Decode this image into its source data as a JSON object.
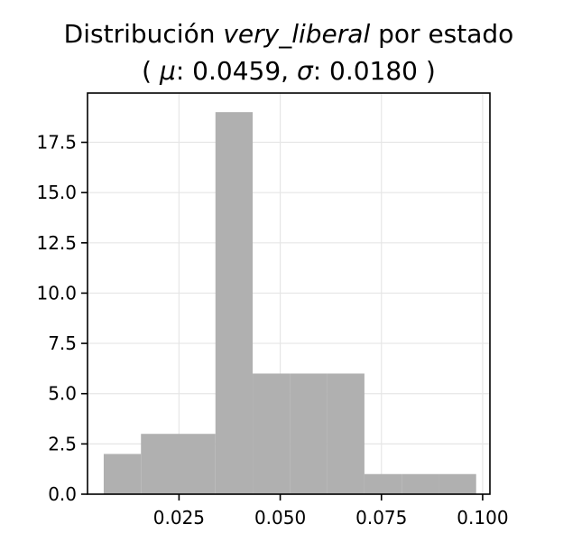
{
  "chart_data": {
    "type": "bar",
    "title": {
      "line1_prefix": "Distribución ",
      "line1_italic": "very_liberal",
      "line1_suffix": " por estado",
      "line2_open": "( ",
      "mu_symbol": "μ",
      "mu_text": ": 0.0459, ",
      "sigma_symbol": "σ",
      "sigma_text": ": 0.0180 )"
    },
    "xlabel": "",
    "ylabel": "",
    "xlim": [
      0.0024,
      0.1018
    ],
    "ylim": [
      0,
      19.95
    ],
    "xticks": [
      0.025,
      0.05,
      0.075,
      0.1
    ],
    "xtick_labels": [
      "0.025",
      "0.050",
      "0.075",
      "0.100"
    ],
    "yticks": [
      0,
      2.5,
      5,
      7.5,
      10,
      12.5,
      15,
      17.5
    ],
    "ytick_labels": [
      "0.0",
      "2.5",
      "5.0",
      "7.5",
      "10.0",
      "12.5",
      "15.0",
      "17.5"
    ],
    "grid": true,
    "bar_color": "#b0b0b0",
    "bins": [
      {
        "x0": 0.0064,
        "x1": 0.0156,
        "count": 2
      },
      {
        "x0": 0.0156,
        "x1": 0.0248,
        "count": 3
      },
      {
        "x0": 0.0248,
        "x1": 0.034,
        "count": 3
      },
      {
        "x0": 0.034,
        "x1": 0.0432,
        "count": 19
      },
      {
        "x0": 0.0432,
        "x1": 0.0524,
        "count": 6
      },
      {
        "x0": 0.0524,
        "x1": 0.0616,
        "count": 6
      },
      {
        "x0": 0.0616,
        "x1": 0.0708,
        "count": 6
      },
      {
        "x0": 0.0708,
        "x1": 0.08,
        "count": 1
      },
      {
        "x0": 0.08,
        "x1": 0.0892,
        "count": 1
      },
      {
        "x0": 0.0892,
        "x1": 0.0984,
        "count": 1
      }
    ]
  }
}
